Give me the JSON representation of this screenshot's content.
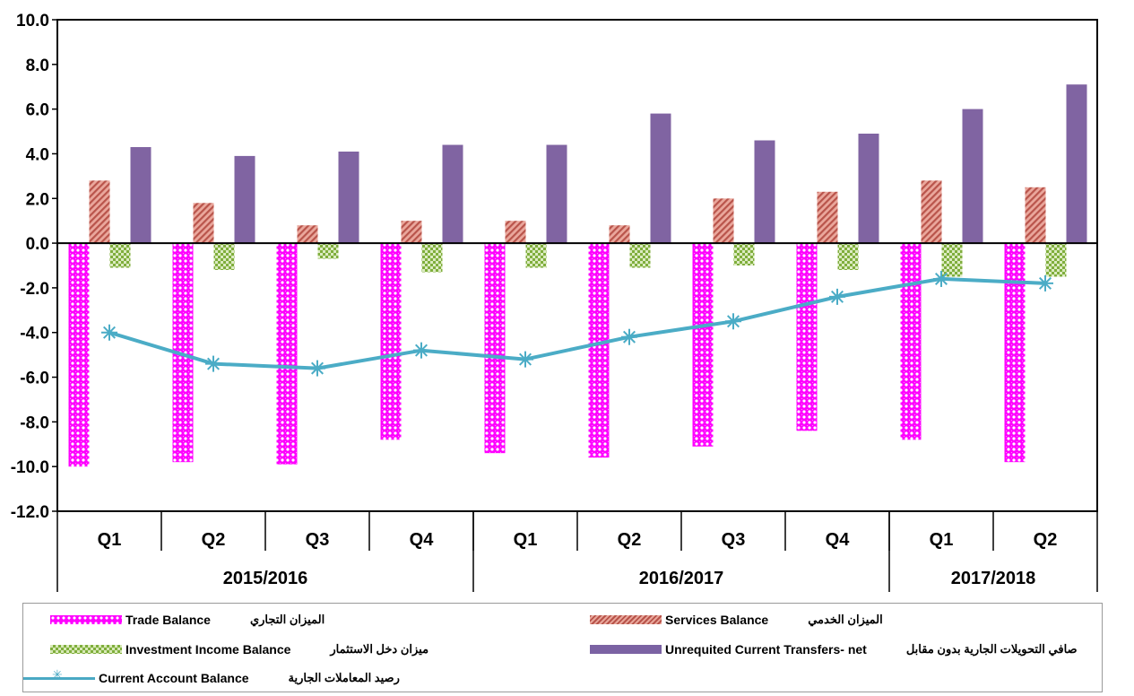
{
  "chart_data": {
    "type": "bar",
    "categories": [
      "Q1",
      "Q2",
      "Q3",
      "Q4",
      "Q1",
      "Q2",
      "Q3",
      "Q4",
      "Q1",
      "Q2"
    ],
    "year_groups": [
      {
        "label": "2015/2016",
        "span": 4
      },
      {
        "label": "2016/2017",
        "span": 4
      },
      {
        "label": "2017/2018",
        "span": 2
      }
    ],
    "ylim": [
      -12,
      10
    ],
    "yticks": [
      "10.0",
      "8.0",
      "6.0",
      "4.0",
      "2.0",
      "0.0",
      "-2.0",
      "-4.0",
      "-6.0",
      "-8.0",
      "-10.0",
      "-12.0"
    ],
    "ytick_values": [
      10,
      8,
      6,
      4,
      2,
      0,
      -2,
      -4,
      -6,
      -8,
      -10,
      -12
    ],
    "series": [
      {
        "name": "Trade Balance",
        "name_ar": "الميزان التجاري",
        "kind": "bar",
        "color": "#ff00ff",
        "values": [
          -10.0,
          -9.8,
          -9.9,
          -8.8,
          -9.4,
          -9.6,
          -9.1,
          -8.4,
          -8.8,
          -9.8
        ]
      },
      {
        "name": "Services Balance",
        "name_ar": "الميزان الخدمي",
        "kind": "bar",
        "color": "#c0504d",
        "values": [
          2.8,
          1.8,
          0.8,
          1.0,
          1.0,
          0.8,
          2.0,
          2.3,
          2.8,
          2.5
        ]
      },
      {
        "name": "Investment Income Balance",
        "name_ar": "ميزان دخل الاستثمار",
        "kind": "bar",
        "color": "#9bbb59",
        "values": [
          -1.1,
          -1.2,
          -0.7,
          -1.3,
          -1.1,
          -1.1,
          -1.0,
          -1.2,
          -1.5,
          -1.5
        ]
      },
      {
        "name": "Unrequited Current Transfers- net",
        "name_ar": "صافي التحويلات الجارية بدون مقابل",
        "kind": "bar",
        "color": "#8064a2",
        "values": [
          4.3,
          3.9,
          4.1,
          4.4,
          4.4,
          5.8,
          4.6,
          4.9,
          6.0,
          7.1
        ]
      },
      {
        "name": "Current Account Balance",
        "name_ar": "رصيد المعاملات الجارية",
        "kind": "line",
        "color": "#4bacc6",
        "values": [
          -4.0,
          -5.4,
          -5.6,
          -4.8,
          -5.2,
          -4.2,
          -3.5,
          -2.4,
          -1.6,
          -1.8
        ]
      }
    ],
    "legend_position": "bottom",
    "grid": false
  }
}
